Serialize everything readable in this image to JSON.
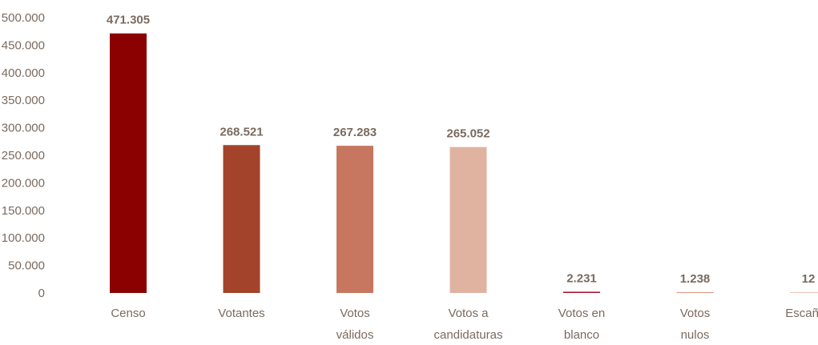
{
  "chart_data": {
    "type": "bar",
    "categories": [
      [
        "Censo"
      ],
      [
        "Votantes"
      ],
      [
        "Votos",
        "válidos"
      ],
      [
        "Votos a",
        "candidaturas"
      ],
      [
        "Votos en",
        "blanco"
      ],
      [
        "Votos",
        "nulos"
      ],
      [
        "Escaños"
      ]
    ],
    "values": [
      471305,
      268521,
      267283,
      265052,
      2231,
      1238,
      12
    ],
    "data_labels": [
      "471.305",
      "268.521",
      "267.283",
      "265.052",
      "2.231",
      "1.238",
      "12"
    ],
    "ylim": [
      0,
      500000
    ],
    "yticks": [
      0,
      50000,
      100000,
      150000,
      200000,
      250000,
      300000,
      350000,
      400000,
      450000,
      500000
    ],
    "ytick_labels": [
      "0",
      "50.000",
      "100.000",
      "150.000",
      "200.000",
      "250.000",
      "300.000",
      "350.000",
      "400.000",
      "450.000",
      "500.000"
    ],
    "grid": false,
    "title": "",
    "xlabel": "",
    "ylabel": "",
    "colors": [
      "#8b0000",
      "#a3432b",
      "#c77760",
      "#e0b3a1",
      "#a6122d",
      "#e5917e",
      "#f0c2b4"
    ]
  }
}
